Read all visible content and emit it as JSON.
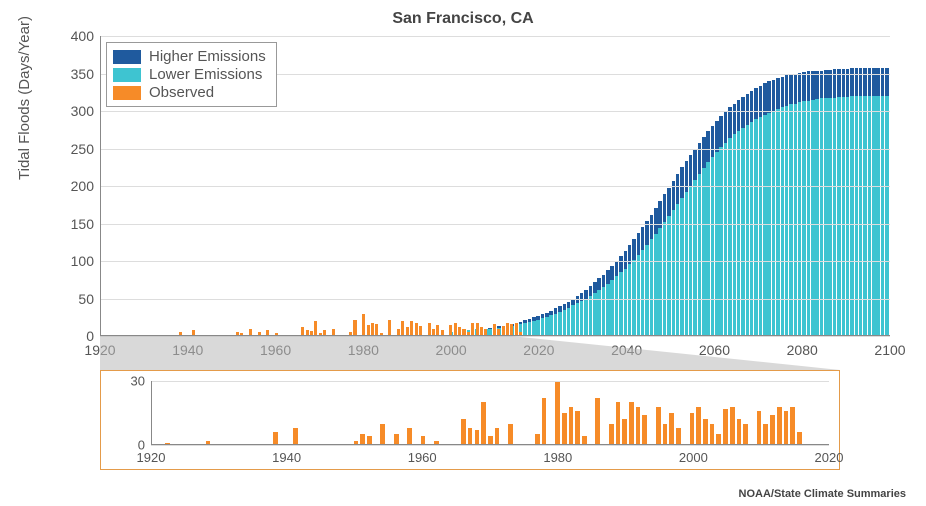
{
  "title": "San Francisco, CA",
  "ylabel": "Tidal Floods (Days/Year)",
  "attribution": "NOAA/State Climate Summaries",
  "title_fontsize": 16,
  "label_fontsize": 15,
  "tick_fontsize": 14,
  "colors": {
    "higher": "#1f5a9e",
    "lower": "#3ec4d1",
    "observed": "#f68b28",
    "grid": "#dddddd",
    "axis": "#888888",
    "text": "#555555",
    "title_text": "#444444",
    "background": "#ffffff",
    "inset_border": "#e49b4a",
    "zoom_fill": "#b9b9b9"
  },
  "legend": {
    "items": [
      {
        "label": "Higher Emissions",
        "color_key": "higher"
      },
      {
        "label": "Lower Emissions",
        "color_key": "lower"
      },
      {
        "label": "Observed",
        "color_key": "observed"
      }
    ]
  },
  "main_chart": {
    "type": "bar",
    "xlim": [
      1920,
      2100
    ],
    "ylim": [
      0,
      400
    ],
    "ytick_step": 50,
    "yticks": [
      0,
      50,
      100,
      150,
      200,
      250,
      300,
      350,
      400
    ],
    "xticks": [
      1920,
      1940,
      1960,
      1980,
      2000,
      2020,
      2040,
      2060,
      2080,
      2100
    ],
    "bar_width": 0.8,
    "observed": {
      "start_year": 1920,
      "values": [
        0,
        0,
        1,
        0,
        0,
        0,
        0,
        0,
        2,
        0,
        0,
        0,
        0,
        0,
        0,
        0,
        0,
        0,
        6,
        0,
        0,
        8,
        0,
        0,
        0,
        0,
        0,
        0,
        0,
        0,
        2,
        5,
        4,
        0,
        10,
        0,
        5,
        0,
        8,
        0,
        4,
        0,
        2,
        0,
        0,
        0,
        12,
        8,
        7,
        20,
        4,
        8,
        0,
        10,
        0,
        0,
        0,
        5,
        22,
        0,
        30,
        15,
        18,
        16,
        4,
        0,
        22,
        0,
        10,
        20,
        12,
        20,
        18,
        14,
        0,
        18,
        10,
        15,
        8,
        0,
        15,
        18,
        12,
        10,
        5,
        17,
        18,
        12,
        10,
        0,
        16,
        10,
        14,
        18,
        16,
        18,
        6,
        0,
        0,
        0
      ]
    },
    "lower": {
      "start_year": 2000,
      "values": [
        6,
        6,
        7,
        7,
        8,
        8,
        9,
        9,
        10,
        10,
        11,
        11,
        12,
        13,
        14,
        15,
        16,
        18,
        19,
        20,
        22,
        24,
        26,
        28,
        30,
        32,
        35,
        38,
        41,
        44,
        47,
        50,
        54,
        58,
        62,
        66,
        70,
        75,
        80,
        85,
        90,
        96,
        102,
        108,
        115,
        122,
        129,
        136,
        144,
        152,
        160,
        168,
        176,
        184,
        192,
        200,
        208,
        216,
        224,
        232,
        239,
        246,
        252,
        258,
        264,
        269,
        274,
        278,
        282,
        286,
        289,
        292,
        295,
        298,
        300,
        303,
        305,
        307,
        309,
        310,
        312,
        313,
        314,
        315,
        316,
        317,
        318,
        318,
        318,
        319,
        319,
        319,
        320,
        320,
        320,
        320,
        320,
        320,
        320,
        320,
        320
      ]
    },
    "higher": {
      "start_year": 2000,
      "values": [
        6,
        6,
        7,
        7,
        8,
        8,
        9,
        9,
        10,
        11,
        12,
        13,
        14,
        15,
        16,
        18,
        19,
        21,
        23,
        25,
        27,
        29,
        31,
        34,
        37,
        40,
        43,
        46,
        50,
        54,
        58,
        62,
        67,
        72,
        77,
        82,
        88,
        94,
        100,
        107,
        114,
        121,
        129,
        137,
        145,
        153,
        162,
        171,
        180,
        189,
        198,
        207,
        216,
        225,
        234,
        242,
        250,
        258,
        266,
        273,
        280,
        287,
        293,
        299,
        305,
        310,
        315,
        319,
        323,
        327,
        331,
        334,
        337,
        340,
        342,
        344,
        346,
        348,
        349,
        350,
        351,
        352,
        353,
        353,
        354,
        354,
        355,
        355,
        356,
        356,
        356,
        356,
        357,
        357,
        357,
        357,
        358,
        358,
        358,
        358,
        358
      ]
    }
  },
  "inset_chart": {
    "type": "bar",
    "xlim": [
      1920,
      2020
    ],
    "ylim": [
      0,
      30
    ],
    "yticks": [
      0,
      30
    ],
    "xticks": [
      1920,
      1940,
      1960,
      1980,
      2000,
      2020
    ],
    "color_key": "observed",
    "start_year": 1920,
    "values": [
      0,
      0,
      1,
      0,
      0,
      0,
      0,
      0,
      2,
      0,
      0,
      0,
      0,
      0,
      0,
      0,
      0,
      0,
      6,
      0,
      0,
      8,
      0,
      0,
      0,
      0,
      0,
      0,
      0,
      0,
      2,
      5,
      4,
      0,
      10,
      0,
      5,
      0,
      8,
      0,
      4,
      0,
      2,
      0,
      0,
      0,
      12,
      8,
      7,
      20,
      4,
      8,
      0,
      10,
      0,
      0,
      0,
      5,
      22,
      0,
      30,
      15,
      18,
      16,
      4,
      0,
      22,
      0,
      10,
      20,
      12,
      20,
      18,
      14,
      0,
      18,
      10,
      15,
      8,
      0,
      15,
      18,
      12,
      10,
      5,
      17,
      18,
      12,
      10,
      0,
      16,
      10,
      14,
      18,
      16,
      18,
      6,
      0,
      0,
      0
    ]
  }
}
